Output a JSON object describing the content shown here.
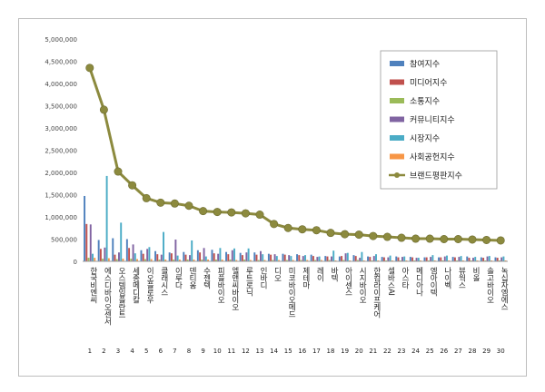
{
  "chart_data": {
    "type": "bar",
    "title": "",
    "xlabel": "",
    "ylabel": "",
    "ylim": [
      0,
      5000000
    ],
    "yticks": [
      "0",
      "500,000",
      "1,000,000",
      "1,500,000",
      "2,000,000",
      "2,500,000",
      "3,000,000",
      "3,500,000",
      "4,000,000",
      "4,500,000",
      "5,000,000"
    ],
    "grid": false,
    "legend_position": "right",
    "ranks": [
      "1",
      "2",
      "3",
      "4",
      "5",
      "6",
      "7",
      "8",
      "9",
      "10",
      "11",
      "12",
      "13",
      "14",
      "15",
      "16",
      "17",
      "18",
      "19",
      "20",
      "21",
      "22",
      "23",
      "24",
      "25",
      "26",
      "27",
      "28",
      "29",
      "30"
    ],
    "categories": [
      "한국비엔씨",
      "에스디바이오센서",
      "오스템임플란트",
      "세종메디칼",
      "이오플로우",
      "클래시스",
      "이루다",
      "덴티움",
      "수젠텍",
      "피플바이오",
      "엘앤씨바이오",
      "루트로닉",
      "인바디",
      "디오",
      "미코바이오메드",
      "제테마",
      "레이",
      "바텍",
      "아이센스",
      "시지바이오",
      "한컴라이프케어",
      "셀바스AI",
      "아스타",
      "메디아나",
      "엠아이텍",
      "나이벡",
      "뷰웍스",
      "비올",
      "솔고바이오",
      "녹십자엠에스"
    ],
    "series": [
      {
        "name": "참여지수",
        "color": "#4f81bd",
        "values": [
          1470000,
          480000,
          520000,
          500000,
          250000,
          230000,
          200000,
          210000,
          250000,
          260000,
          210000,
          190000,
          200000,
          170000,
          170000,
          160000,
          150000,
          120000,
          110000,
          140000,
          110000,
          100000,
          110000,
          100000,
          90000,
          90000,
          100000,
          110000,
          90000,
          90000
        ]
      },
      {
        "name": "미디어지수",
        "color": "#c0504d",
        "values": [
          840000,
          280000,
          150000,
          300000,
          170000,
          160000,
          180000,
          150000,
          200000,
          180000,
          160000,
          140000,
          150000,
          150000,
          150000,
          140000,
          120000,
          110000,
          120000,
          120000,
          100000,
          90000,
          90000,
          90000,
          90000,
          90000,
          90000,
          80000,
          80000,
          80000
        ]
      },
      {
        "name": "소통지수",
        "color": "#9bbb59",
        "values": [
          80000,
          60000,
          50000,
          60000,
          50000,
          40000,
          40000,
          40000,
          40000,
          40000,
          40000,
          40000,
          30000,
          30000,
          30000,
          30000,
          30000,
          30000,
          30000,
          30000,
          20000,
          20000,
          20000,
          20000,
          20000,
          20000,
          20000,
          20000,
          20000,
          20000
        ]
      },
      {
        "name": "커뮤니티지수",
        "color": "#8064a2",
        "values": [
          830000,
          310000,
          200000,
          380000,
          280000,
          150000,
          490000,
          140000,
          300000,
          170000,
          250000,
          200000,
          230000,
          160000,
          140000,
          120000,
          100000,
          110000,
          180000,
          80000,
          120000,
          90000,
          100000,
          80000,
          100000,
          110000,
          100000,
          80000,
          110000,
          90000
        ]
      },
      {
        "name": "시장지수",
        "color": "#4bacc6",
        "values": [
          170000,
          1920000,
          870000,
          180000,
          320000,
          660000,
          130000,
          470000,
          110000,
          300000,
          290000,
          290000,
          160000,
          120000,
          120000,
          140000,
          110000,
          240000,
          190000,
          210000,
          160000,
          130000,
          110000,
          80000,
          140000,
          130000,
          120000,
          100000,
          120000,
          110000
        ]
      },
      {
        "name": "사회공헌지수",
        "color": "#f79646",
        "values": [
          80000,
          70000,
          60000,
          50000,
          50000,
          40000,
          40000,
          40000,
          40000,
          40000,
          30000,
          30000,
          30000,
          30000,
          30000,
          30000,
          30000,
          20000,
          20000,
          20000,
          20000,
          20000,
          20000,
          20000,
          20000,
          20000,
          20000,
          20000,
          20000,
          20000
        ]
      },
      {
        "name": "브랜드평판지수",
        "color": "#8c8a3e",
        "type": "line",
        "values": [
          4350000,
          3410000,
          2020000,
          1710000,
          1420000,
          1320000,
          1300000,
          1250000,
          1130000,
          1110000,
          1100000,
          1080000,
          1050000,
          840000,
          750000,
          720000,
          700000,
          640000,
          610000,
          600000,
          570000,
          550000,
          530000,
          510000,
          510000,
          500000,
          500000,
          490000,
          480000,
          470000
        ]
      }
    ]
  }
}
